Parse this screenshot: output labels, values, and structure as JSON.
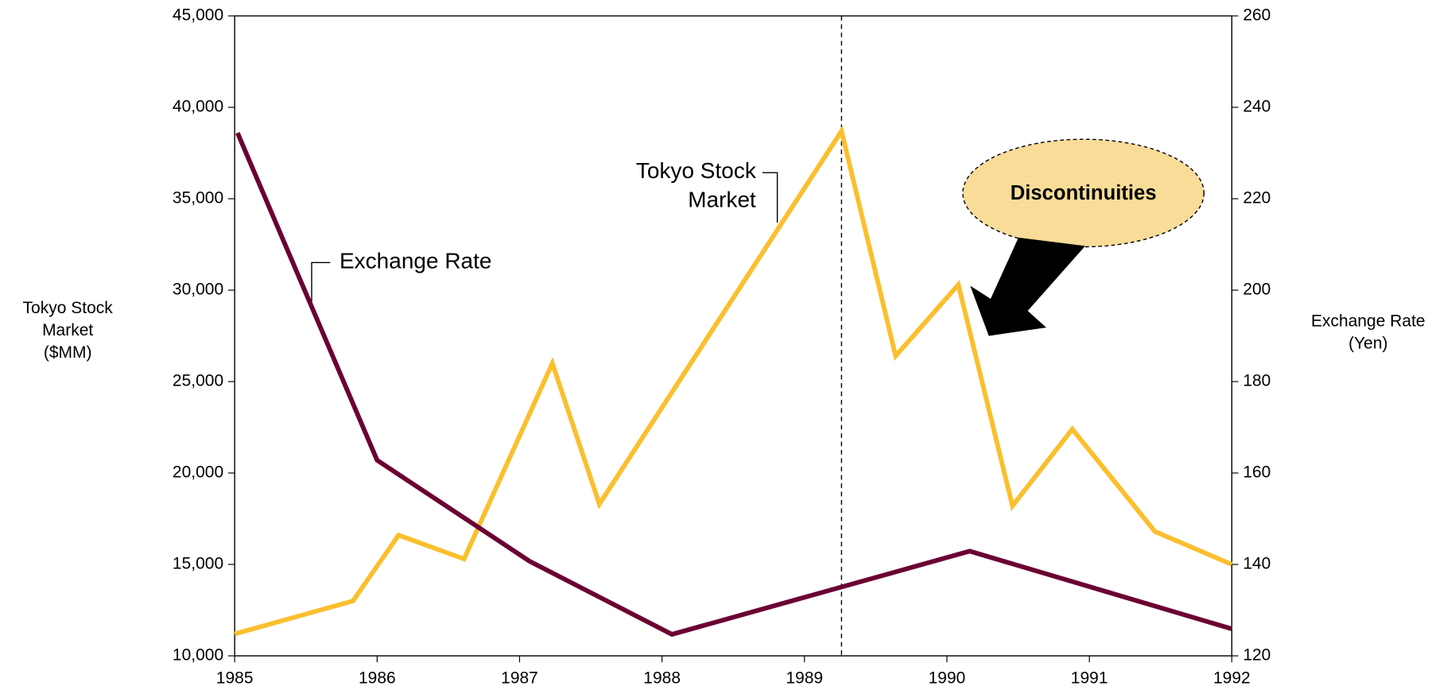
{
  "chart_data": {
    "type": "line",
    "ylabel": [
      "Tokyo Stock",
      "Market",
      "($MM)"
    ],
    "y2label": [
      "Exchange Rate",
      "(Yen)"
    ],
    "annotation": "Discontinuities",
    "vline": 1989.26,
    "xlim": [
      1985,
      1992
    ],
    "xticks": [
      1985,
      1986,
      1987,
      1988,
      1989,
      1990,
      1991,
      1992
    ],
    "ylim": [
      10000,
      45000
    ],
    "yticks": [
      {
        "value": 10000,
        "label": "10,000"
      },
      {
        "value": 15000,
        "label": "15,000"
      },
      {
        "value": 20000,
        "label": "20,000"
      },
      {
        "value": 25000,
        "label": "25,000"
      },
      {
        "value": 30000,
        "label": "30,000"
      },
      {
        "value": 35000,
        "label": "35,000"
      },
      {
        "value": 40000,
        "label": "40,000"
      },
      {
        "value": 45000,
        "label": "45,000"
      }
    ],
    "y2lim": [
      120,
      260
    ],
    "y2ticks": [
      120,
      140,
      160,
      180,
      200,
      220,
      240,
      260
    ],
    "series": [
      {
        "name": "Tokyo Stock Market",
        "color": "#FBBF2E",
        "x": [
          1985.0,
          1985.83,
          1986.15,
          1986.61,
          1987.23,
          1987.56,
          1989.26,
          1989.64,
          1990.08,
          1990.46,
          1990.88,
          1991.46,
          1992.0
        ],
        "values": [
          11200,
          13000,
          16600,
          15300,
          26000,
          18300,
          38700,
          26400,
          30300,
          18200,
          22400,
          16800,
          15000
        ]
      },
      {
        "name": "Exchange Rate",
        "color": "#6B0033",
        "axis": "y2",
        "x": [
          1985.02,
          1986.0,
          1987.07,
          1988.07,
          1990.16,
          1992.0
        ],
        "values": [
          234.4,
          162.8,
          140.7,
          124.7,
          142.9,
          125.9
        ]
      }
    ]
  }
}
